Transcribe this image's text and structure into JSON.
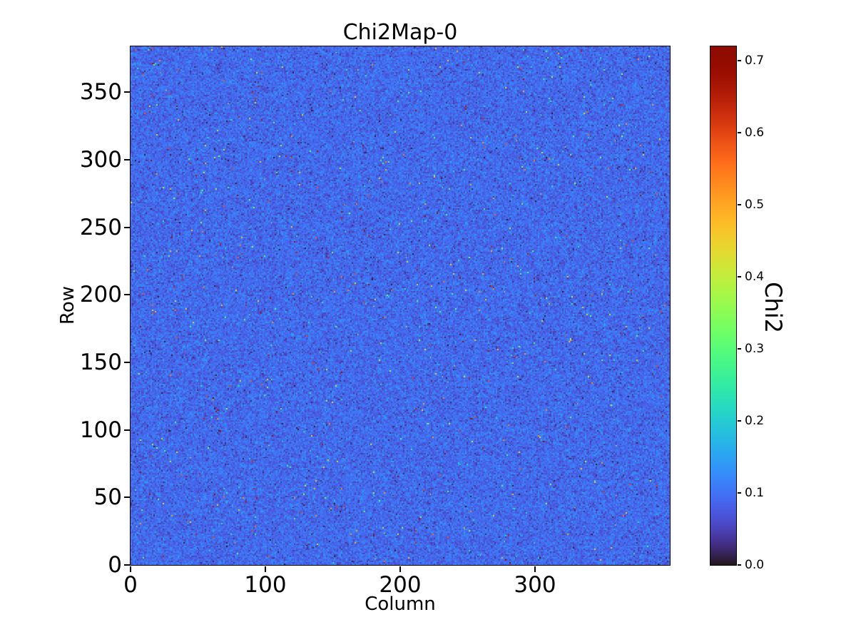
{
  "figure": {
    "background_color": "#ffffff",
    "text_color": "#000000"
  },
  "chart_data": {
    "type": "heatmap",
    "title": "Chi2Map-0",
    "xlabel": "Column",
    "ylabel": "Row",
    "xlim": [
      0,
      400
    ],
    "ylim": [
      0,
      384
    ],
    "x_ticks": [
      0,
      100,
      200,
      300
    ],
    "y_ticks": [
      0,
      50,
      100,
      150,
      200,
      250,
      300,
      350
    ],
    "grid": {
      "columns": 400,
      "rows": 384
    },
    "colormap": "turbo",
    "legend": "none",
    "colorbar": {
      "label": "Chi2",
      "side": "right",
      "tick_labels": [
        "0.0",
        "0.1",
        "0.2",
        "0.3",
        "0.4",
        "0.5",
        "0.6",
        "0.7"
      ],
      "tick_values": [
        0.0,
        0.1,
        0.2,
        0.3,
        0.4,
        0.5,
        0.6,
        0.7
      ],
      "vmin": 0.0,
      "vmax": 0.72
    },
    "value_distribution": {
      "description": "dense blue noise of chi2 values near 0.09 with sparse hot pixels and sparse near-zero dark pixels",
      "base_mean": 0.09,
      "base_sd": 0.022,
      "base_clip": [
        0.02,
        0.3
      ],
      "hot_fraction": 0.005,
      "hot_range": [
        0.16,
        0.72
      ],
      "dark_fraction": 0.004,
      "dark_range": [
        0.0,
        0.045
      ],
      "seed": 20240
    }
  }
}
